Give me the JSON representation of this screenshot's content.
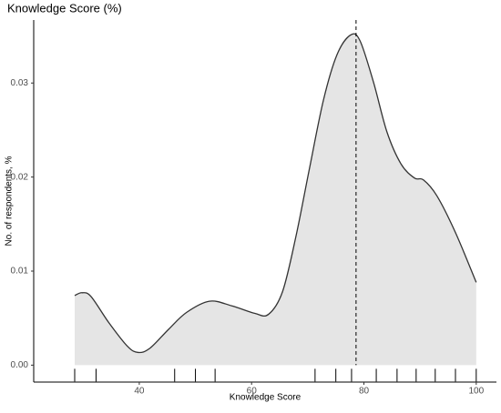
{
  "chart_data": {
    "type": "density",
    "title": "Knowledge Score (%)",
    "x_label": "Knowledge Score",
    "y_label": "No. of respondents, %",
    "x": [
      28.5,
      29.8,
      31.4,
      34.6,
      37.9,
      39.8,
      41.9,
      45.2,
      48.4,
      52.5,
      56.5,
      60.6,
      63.0,
      65.5,
      67.9,
      70.3,
      72.8,
      75.2,
      77.6,
      79.3,
      81.7,
      84.1,
      86.6,
      89.0,
      90.6,
      93.0,
      96.3,
      100
    ],
    "values": [
      0.0074,
      0.0077,
      0.0073,
      0.0045,
      0.002,
      0.00135,
      0.0018,
      0.0038,
      0.0056,
      0.0068,
      0.0063,
      0.0055,
      0.0054,
      0.0078,
      0.0137,
      0.0209,
      0.0282,
      0.033,
      0.0351,
      0.0345,
      0.0301,
      0.0248,
      0.0214,
      0.0199,
      0.0197,
      0.018,
      0.0141,
      0.0088
    ],
    "rug": [
      28.5,
      32.3,
      46.3,
      50,
      53.5,
      71.3,
      75,
      77.8,
      82.2,
      85.9,
      89.3,
      92.7,
      96.3,
      100
    ],
    "mean_line": 78.6,
    "color": "#333333",
    "fill": "#e5e5e5",
    "xlim": [
      21.2,
      103.6
    ],
    "ylim": [
      -0.0018,
      0.0367
    ],
    "xticks": [
      40,
      60,
      80,
      100
    ],
    "yticks": [
      {
        "value": 0,
        "label": "0.00"
      },
      0.01,
      0.02,
      0.03
    ]
  }
}
